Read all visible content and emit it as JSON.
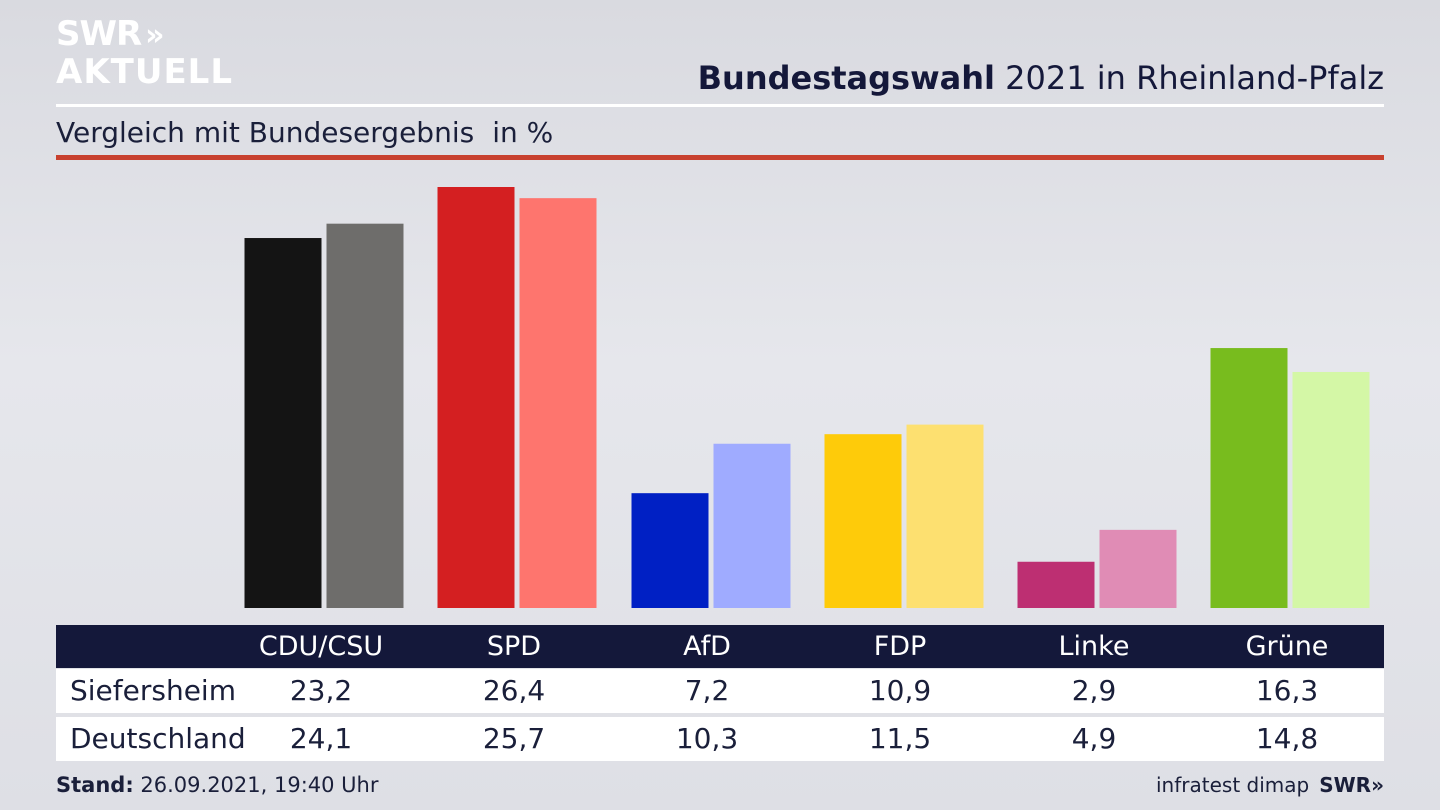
{
  "logo": {
    "line1": "SWR",
    "line2": "AKTUELL",
    "chevrons": "»"
  },
  "header": {
    "title_bold": "Bundestagswahl",
    "title_rest": " 2021 in Rheinland-Pfalz",
    "subtitle": "Vergleich mit Bundesergebnis",
    "unit": "in %"
  },
  "chart_data": {
    "type": "bar",
    "categories": [
      "CDU/CSU",
      "SPD",
      "AfD",
      "FDP",
      "Linke",
      "Grüne"
    ],
    "series": [
      {
        "name": "Siefersheim",
        "values": [
          23.2,
          26.4,
          7.2,
          10.9,
          2.9,
          16.3
        ],
        "colors": [
          "#141414",
          "#d41f21",
          "#0020c4",
          "#fecb0a",
          "#bd2f72",
          "#78bc1e"
        ]
      },
      {
        "name": "Deutschland",
        "values": [
          24.1,
          25.7,
          10.3,
          11.5,
          4.9,
          14.8
        ],
        "colors": [
          "#6e6d6b",
          "#fe756e",
          "#9fabff",
          "#fde070",
          "#e08cb5",
          "#d4f7a6"
        ]
      }
    ],
    "display_values": {
      "Siefersheim": [
        "23,2",
        "26,4",
        "7,2",
        "10,9",
        "2,9",
        "16,3"
      ],
      "Deutschland": [
        "24,1",
        "25,7",
        "10,3",
        "11,5",
        "4,9",
        "14,8"
      ]
    },
    "ylim": [
      0,
      26.4
    ],
    "grid": false,
    "legend": "table-below"
  },
  "footer": {
    "stand_label": "Stand:",
    "stand_value": " 26.09.2021, 19:40 Uhr",
    "source": "infratest dimap",
    "brand": "SWR»"
  }
}
